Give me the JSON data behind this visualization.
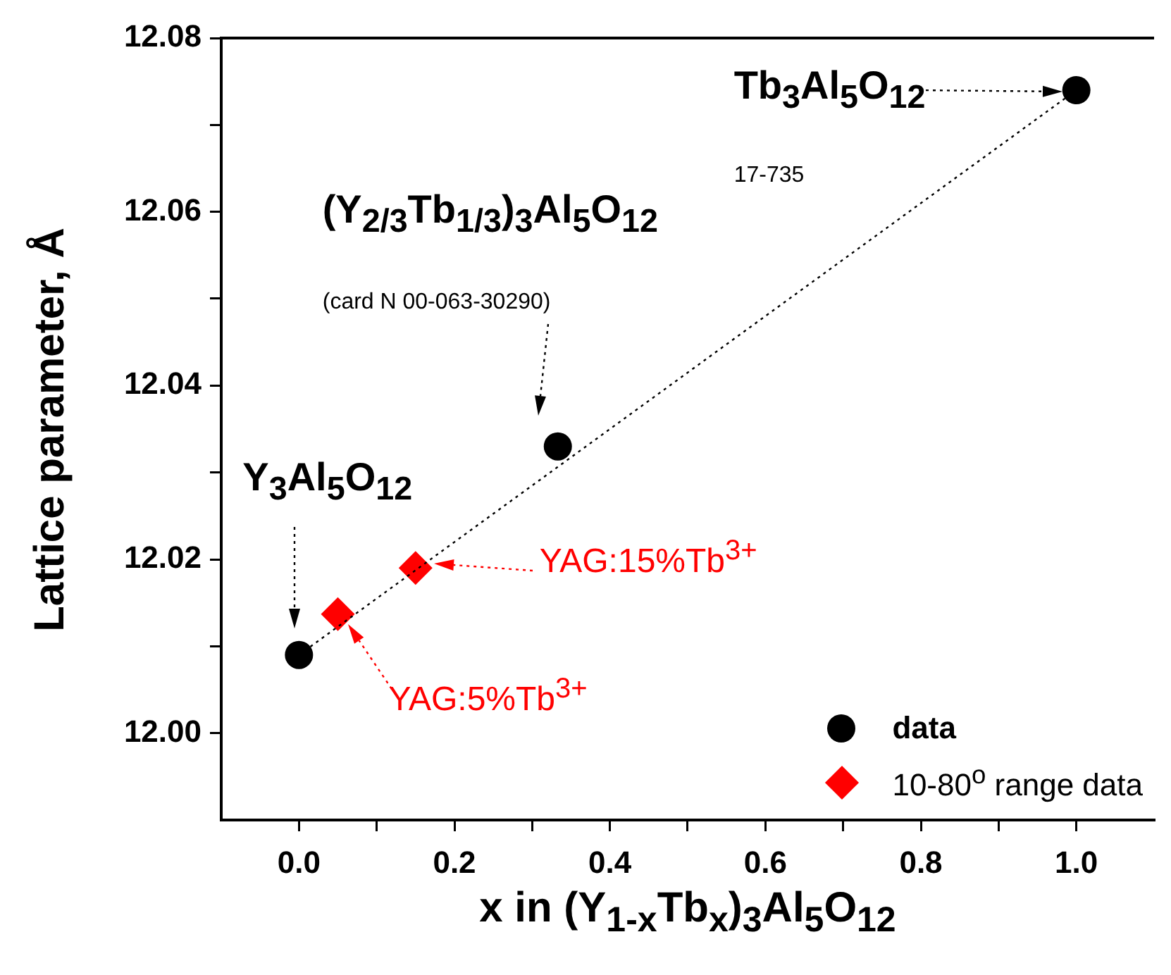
{
  "chart_data": {
    "type": "scatter",
    "xlabel": "x in (Y$_{1-x}$Tb$_{x}$)$_{3}$Al$_{5}$O$_{12}$",
    "ylabel": "Lattice parameter, Å",
    "xlim": [
      -0.1,
      1.1
    ],
    "xticks": [
      {
        "value": 0,
        "label": "0.0"
      },
      {
        "value": 0.1,
        "label": null
      },
      {
        "value": 0.2,
        "label": "0.2"
      },
      {
        "value": 0.3,
        "label": null
      },
      {
        "value": 0.4,
        "label": "0.4"
      },
      {
        "value": 0.5,
        "label": null
      },
      {
        "value": 0.6,
        "label": "0.6"
      },
      {
        "value": 0.7,
        "label": null
      },
      {
        "value": 0.8,
        "label": "0.8"
      },
      {
        "value": 0.9,
        "label": null
      },
      {
        "value": 1,
        "label": "1.0"
      }
    ],
    "ylim": [
      11.99,
      12.08
    ],
    "yticks": [
      {
        "value": 12,
        "label": "12.00"
      },
      {
        "value": 12.01,
        "label": null
      },
      {
        "value": 12.02,
        "label": "12.02"
      },
      {
        "value": 12.03,
        "label": null
      },
      {
        "value": 12.04,
        "label": "12.04"
      },
      {
        "value": 12.05,
        "label": null
      },
      {
        "value": 12.06,
        "label": "12.06"
      },
      {
        "value": 12.07,
        "label": null
      },
      {
        "value": 12.08,
        "label": "12.08"
      }
    ],
    "grid": false,
    "legend": "bottom right",
    "series": [
      {
        "type": "line",
        "color": "#000000",
        "line_style": "dotted",
        "marker": "none",
        "x": [
          0,
          1
        ],
        "values": [
          12.009,
          12.074
        ]
      },
      {
        "type": "scatter",
        "name": "data",
        "color": "#000000",
        "marker": "circle",
        "x": [
          0,
          0.333,
          1
        ],
        "values": [
          12.009,
          12.033,
          12.074
        ]
      },
      {
        "type": "scatter",
        "name": "10-80$^{o}$ range data",
        "color": "#ff0000",
        "marker": "diamond",
        "x": [
          0.05,
          0.15
        ],
        "values": [
          12.0137,
          12.019
        ]
      }
    ],
    "annotations": [
      "Tb$_{3}$Al$_{5}$O$_{12}$",
      "17-735",
      "(Y$_{2/3}$Tb$_{1/3}$)$_{3}$Al$_{5}$O$_{12}$",
      "(card N 00-063-30290)",
      "Y$_{3}$Al$_{5}$O$_{12}$",
      "YAG:15%Tb$^{3+}$",
      "YAG:5%Tb$^{3+}$"
    ]
  }
}
